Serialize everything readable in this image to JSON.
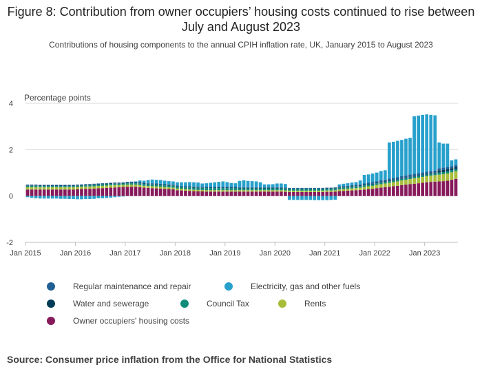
{
  "title": "Figure 8: Contribution from owner occupiers’ housing costs continued to rise between July and August 2023",
  "subtitle": "Contributions of housing components to the annual CPIH inflation rate, UK, January 2015 to August 2023",
  "source": "Source: Consumer price inflation from the Office for National Statistics",
  "chart_data": {
    "type": "bar",
    "stacked": true,
    "ylabel": "Percentage points",
    "ylim": [
      -2,
      4
    ],
    "yticks": [
      "4",
      "2",
      "0",
      "-2"
    ],
    "xticks": [
      "Jan 2015",
      "Jan 2016",
      "Jan 2017",
      "Jan 2018",
      "Jan 2019",
      "Jan 2020",
      "Jan 2021",
      "Jan 2022",
      "Jan 2023"
    ],
    "grid": true,
    "legend_position": "bottom",
    "categories": [
      "Jan 2015",
      "Feb 2015",
      "Mar 2015",
      "Apr 2015",
      "May 2015",
      "Jun 2015",
      "Jul 2015",
      "Aug 2015",
      "Sep 2015",
      "Oct 2015",
      "Nov 2015",
      "Dec 2015",
      "Jan 2016",
      "Feb 2016",
      "Mar 2016",
      "Apr 2016",
      "May 2016",
      "Jun 2016",
      "Jul 2016",
      "Aug 2016",
      "Sep 2016",
      "Oct 2016",
      "Nov 2016",
      "Dec 2016",
      "Jan 2017",
      "Feb 2017",
      "Mar 2017",
      "Apr 2017",
      "May 2017",
      "Jun 2017",
      "Jul 2017",
      "Aug 2017",
      "Sep 2017",
      "Oct 2017",
      "Nov 2017",
      "Dec 2017",
      "Jan 2018",
      "Feb 2018",
      "Mar 2018",
      "Apr 2018",
      "May 2018",
      "Jun 2018",
      "Jul 2018",
      "Aug 2018",
      "Sep 2018",
      "Oct 2018",
      "Nov 2018",
      "Dec 2018",
      "Jan 2019",
      "Feb 2019",
      "Mar 2019",
      "Apr 2019",
      "May 2019",
      "Jun 2019",
      "Jul 2019",
      "Aug 2019",
      "Sep 2019",
      "Oct 2019",
      "Nov 2019",
      "Dec 2019",
      "Jan 2020",
      "Feb 2020",
      "Mar 2020",
      "Apr 2020",
      "May 2020",
      "Jun 2020",
      "Jul 2020",
      "Aug 2020",
      "Sep 2020",
      "Oct 2020",
      "Nov 2020",
      "Dec 2020",
      "Jan 2021",
      "Feb 2021",
      "Mar 2021",
      "Apr 2021",
      "May 2021",
      "Jun 2021",
      "Jul 2021",
      "Aug 2021",
      "Sep 2021",
      "Oct 2021",
      "Nov 2021",
      "Dec 2021",
      "Jan 2022",
      "Feb 2022",
      "Mar 2022",
      "Apr 2022",
      "May 2022",
      "Jun 2022",
      "Jul 2022",
      "Aug 2022",
      "Sep 2022",
      "Oct 2022",
      "Nov 2022",
      "Dec 2022",
      "Jan 2023",
      "Feb 2023",
      "Mar 2023",
      "Apr 2023",
      "May 2023",
      "Jun 2023",
      "Jul 2023",
      "Aug 2023"
    ],
    "series": [
      {
        "name": "Owner occupiers' housing costs",
        "color": "#871a5b",
        "values": [
          0.28,
          0.28,
          0.28,
          0.28,
          0.28,
          0.28,
          0.28,
          0.28,
          0.28,
          0.28,
          0.28,
          0.28,
          0.29,
          0.3,
          0.31,
          0.31,
          0.32,
          0.33,
          0.34,
          0.35,
          0.36,
          0.37,
          0.38,
          0.39,
          0.4,
          0.4,
          0.4,
          0.38,
          0.36,
          0.35,
          0.34,
          0.33,
          0.32,
          0.31,
          0.3,
          0.29,
          0.25,
          0.24,
          0.23,
          0.22,
          0.21,
          0.2,
          0.2,
          0.19,
          0.19,
          0.19,
          0.19,
          0.19,
          0.19,
          0.19,
          0.19,
          0.19,
          0.19,
          0.19,
          0.19,
          0.19,
          0.19,
          0.19,
          0.19,
          0.19,
          0.19,
          0.19,
          0.18,
          0.17,
          0.17,
          0.17,
          0.17,
          0.17,
          0.17,
          0.17,
          0.17,
          0.17,
          0.18,
          0.18,
          0.19,
          0.21,
          0.22,
          0.23,
          0.24,
          0.25,
          0.26,
          0.28,
          0.3,
          0.31,
          0.34,
          0.36,
          0.38,
          0.4,
          0.42,
          0.44,
          0.47,
          0.49,
          0.51,
          0.53,
          0.55,
          0.57,
          0.59,
          0.61,
          0.62,
          0.63,
          0.64,
          0.66,
          0.7,
          0.74
        ]
      },
      {
        "name": "Rents",
        "color": "#a8bd3a",
        "values": [
          0.1,
          0.1,
          0.1,
          0.1,
          0.1,
          0.1,
          0.1,
          0.1,
          0.1,
          0.1,
          0.1,
          0.1,
          0.1,
          0.1,
          0.1,
          0.1,
          0.1,
          0.1,
          0.1,
          0.1,
          0.1,
          0.1,
          0.09,
          0.09,
          0.09,
          0.09,
          0.09,
          0.09,
          0.08,
          0.08,
          0.08,
          0.08,
          0.08,
          0.07,
          0.07,
          0.07,
          0.07,
          0.07,
          0.06,
          0.06,
          0.06,
          0.06,
          0.06,
          0.06,
          0.06,
          0.06,
          0.06,
          0.06,
          0.06,
          0.06,
          0.06,
          0.06,
          0.06,
          0.06,
          0.06,
          0.06,
          0.06,
          0.06,
          0.06,
          0.06,
          0.06,
          0.06,
          0.06,
          0.06,
          0.06,
          0.06,
          0.06,
          0.06,
          0.06,
          0.06,
          0.06,
          0.06,
          0.06,
          0.06,
          0.06,
          0.07,
          0.08,
          0.08,
          0.09,
          0.09,
          0.1,
          0.11,
          0.12,
          0.13,
          0.14,
          0.15,
          0.16,
          0.17,
          0.18,
          0.19,
          0.2,
          0.21,
          0.22,
          0.23,
          0.24,
          0.25,
          0.26,
          0.27,
          0.28,
          0.29,
          0.3,
          0.31,
          0.32,
          0.33
        ]
      },
      {
        "name": "Council Tax",
        "color": "#118c7b",
        "values": [
          0.06,
          0.06,
          0.06,
          0.05,
          0.05,
          0.05,
          0.05,
          0.05,
          0.05,
          0.05,
          0.05,
          0.05,
          0.05,
          0.05,
          0.05,
          0.06,
          0.06,
          0.06,
          0.06,
          0.06,
          0.06,
          0.06,
          0.06,
          0.06,
          0.06,
          0.06,
          0.06,
          0.08,
          0.08,
          0.08,
          0.08,
          0.08,
          0.08,
          0.08,
          0.08,
          0.08,
          0.08,
          0.08,
          0.08,
          0.09,
          0.09,
          0.09,
          0.09,
          0.09,
          0.09,
          0.09,
          0.09,
          0.09,
          0.09,
          0.09,
          0.09,
          0.08,
          0.08,
          0.08,
          0.08,
          0.08,
          0.08,
          0.08,
          0.08,
          0.08,
          0.08,
          0.08,
          0.08,
          0.07,
          0.07,
          0.07,
          0.07,
          0.07,
          0.07,
          0.07,
          0.07,
          0.07,
          0.07,
          0.07,
          0.07,
          0.07,
          0.07,
          0.07,
          0.07,
          0.07,
          0.07,
          0.07,
          0.07,
          0.07,
          0.07,
          0.07,
          0.07,
          0.07,
          0.07,
          0.07,
          0.07,
          0.07,
          0.07,
          0.07,
          0.07,
          0.07,
          0.07,
          0.07,
          0.07,
          0.09,
          0.09,
          0.09,
          0.09,
          0.09
        ]
      },
      {
        "name": "Water and sewerage",
        "color": "#003c57",
        "values": [
          0.02,
          0.02,
          0.02,
          0.02,
          0.02,
          0.02,
          0.02,
          0.02,
          0.02,
          0.02,
          0.02,
          0.02,
          0.02,
          0.02,
          0.02,
          0.02,
          0.02,
          0.02,
          0.02,
          0.02,
          0.02,
          0.02,
          0.02,
          0.02,
          0.02,
          0.02,
          0.02,
          0.02,
          0.02,
          0.02,
          0.02,
          0.02,
          0.02,
          0.02,
          0.02,
          0.02,
          0.02,
          0.02,
          0.02,
          0.02,
          0.02,
          0.02,
          0.02,
          0.02,
          0.02,
          0.02,
          0.02,
          0.02,
          0.02,
          0.02,
          0.02,
          0.02,
          0.02,
          0.02,
          0.02,
          0.02,
          0.02,
          0.02,
          0.02,
          0.02,
          0.02,
          0.02,
          0.02,
          0.02,
          0.02,
          0.02,
          0.02,
          0.02,
          0.02,
          0.02,
          0.02,
          0.02,
          0.02,
          0.02,
          0.02,
          0.02,
          0.02,
          0.02,
          0.02,
          0.02,
          0.02,
          0.02,
          0.02,
          0.02,
          0.02,
          0.02,
          0.02,
          0.02,
          0.02,
          0.02,
          0.02,
          0.02,
          0.02,
          0.02,
          0.02,
          0.02,
          0.02,
          0.02,
          0.02,
          0.09,
          0.09,
          0.09,
          0.09,
          0.09
        ]
      },
      {
        "name": "Regular maintenance and repair",
        "color": "#206095",
        "values": [
          0.03,
          0.03,
          0.03,
          0.03,
          0.03,
          0.03,
          0.03,
          0.03,
          0.03,
          0.03,
          0.03,
          0.03,
          0.03,
          0.03,
          0.03,
          0.03,
          0.03,
          0.03,
          0.03,
          0.03,
          0.03,
          0.03,
          0.03,
          0.03,
          0.03,
          0.03,
          0.03,
          0.03,
          0.03,
          0.03,
          0.03,
          0.03,
          0.03,
          0.03,
          0.03,
          0.03,
          0.03,
          0.03,
          0.03,
          0.03,
          0.03,
          0.03,
          0.03,
          0.03,
          0.03,
          0.03,
          0.03,
          0.03,
          0.03,
          0.03,
          0.03,
          0.03,
          0.03,
          0.03,
          0.03,
          0.03,
          0.03,
          0.03,
          0.03,
          0.03,
          0.03,
          0.03,
          0.03,
          0.03,
          0.03,
          0.03,
          0.03,
          0.03,
          0.03,
          0.03,
          0.03,
          0.03,
          0.03,
          0.03,
          0.03,
          0.04,
          0.04,
          0.04,
          0.05,
          0.05,
          0.05,
          0.06,
          0.06,
          0.07,
          0.07,
          0.08,
          0.08,
          0.09,
          0.09,
          0.1,
          0.1,
          0.1,
          0.11,
          0.11,
          0.11,
          0.11,
          0.11,
          0.11,
          0.11,
          0.1,
          0.1,
          0.1,
          0.09,
          0.08
        ]
      },
      {
        "name": "Electricity, gas and other fuels",
        "color": "#27a0cc",
        "values": [
          -0.05,
          -0.08,
          -0.1,
          -0.11,
          -0.11,
          -0.11,
          -0.11,
          -0.11,
          -0.12,
          -0.12,
          -0.13,
          -0.13,
          -0.14,
          -0.14,
          -0.13,
          -0.13,
          -0.12,
          -0.1,
          -0.1,
          -0.09,
          -0.07,
          -0.05,
          -0.03,
          -0.02,
          0.01,
          0.02,
          0.03,
          0.07,
          0.09,
          0.13,
          0.16,
          0.16,
          0.16,
          0.15,
          0.14,
          0.14,
          0.14,
          0.15,
          0.17,
          0.18,
          0.18,
          0.18,
          0.14,
          0.16,
          0.18,
          0.2,
          0.22,
          0.24,
          0.21,
          0.17,
          0.16,
          0.27,
          0.3,
          0.27,
          0.26,
          0.25,
          0.21,
          0.12,
          0.12,
          0.13,
          0.16,
          0.16,
          0.15,
          -0.17,
          -0.17,
          -0.17,
          -0.17,
          -0.17,
          -0.17,
          -0.18,
          -0.18,
          -0.18,
          -0.18,
          -0.17,
          -0.16,
          0.09,
          0.1,
          0.11,
          0.11,
          0.12,
          0.17,
          0.37,
          0.36,
          0.37,
          0.37,
          0.4,
          0.4,
          1.56,
          1.56,
          1.56,
          1.56,
          1.58,
          1.58,
          2.48,
          2.48,
          2.48,
          2.47,
          2.42,
          2.38,
          1.11,
          1.04,
          1.01,
          0.25,
          0.25
        ]
      }
    ]
  },
  "legend": [
    {
      "label": "Regular maintenance and repair",
      "color": "#206095"
    },
    {
      "label": "Electricity, gas and other fuels",
      "color": "#27a0cc"
    },
    {
      "label": "Water and sewerage",
      "color": "#003c57"
    },
    {
      "label": "Council Tax",
      "color": "#118c7b"
    },
    {
      "label": "Rents",
      "color": "#a8bd3a"
    },
    {
      "label": "Owner occupiers' housing costs",
      "color": "#871a5b"
    }
  ]
}
